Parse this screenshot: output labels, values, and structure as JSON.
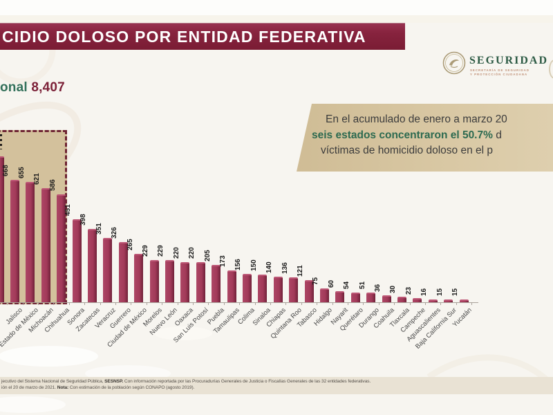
{
  "header": {
    "title_visible": "CIDIO DOLOSO POR ENTIDAD FEDERATIVA",
    "total_prefix_visible": "onal",
    "total_value": "8,407"
  },
  "logo": {
    "wordmark": "SEGURIDAD",
    "sub_line1": "SECRETARÍA DE SEGURIDAD",
    "sub_line2": "Y PROTECCIÓN CIUDADANA"
  },
  "callout": {
    "line1": "En el acumulado de enero a marzo 20",
    "line2_highlight": "seis estados concentraron el 50.7%",
    "line2_tail": " d",
    "line3": "víctimas de homicidio doloso en el p"
  },
  "chart_data": {
    "type": "bar",
    "title_visible": "CIDIO DOLOSO POR ENTIDAD FEDERATIVA",
    "categories": [
      "Jalisco",
      "Estado de México",
      "Michoacán",
      "Chihuahua",
      "Sonora",
      "Zacatecas",
      "Veracruz",
      "Guerrero",
      "Ciudad de México",
      "Morelos",
      "Nuevo León",
      "Oaxaca",
      "San Luis Potosí",
      "Puebla",
      "Tamaulipas",
      "Colima",
      "Sinaloa",
      "Chiapas",
      "Quintana Roo",
      "Tabasco",
      "Hidalgo",
      "Nayarit",
      "Querétaro",
      "Durango",
      "Coahuila",
      "Tlaxcala",
      "Campeche",
      "Aguascalientes",
      "Baja California Sur",
      "Yucatán"
    ],
    "values": [
      668,
      655,
      621,
      586,
      451,
      398,
      351,
      326,
      265,
      229,
      229,
      220,
      220,
      205,
      173,
      156,
      150,
      140,
      136,
      121,
      75,
      60,
      54,
      51,
      36,
      30,
      23,
      16,
      15,
      15
    ],
    "clipped_left_bar": {
      "visible": true,
      "approx_value": 795,
      "value_label_clipped": true
    },
    "highlight_box": {
      "style": "tan fill, dark-red dashed border",
      "visible_bars_inside": [
        "Jalisco",
        "Estado de México",
        "Michoacán",
        "Chihuahua"
      ]
    },
    "ylim": [
      0,
      850
    ],
    "grid": false,
    "legend": false,
    "bar_color": "#a23a59",
    "value_labels_rotation": -90,
    "category_labels_rotation": -45
  },
  "footer": {
    "line1_pre": "jecutivo del Sistema Nacional de Seguridad Pública, ",
    "line1_bold": "SESNSP.",
    "line1_post": " Con información reportada por las Procuradurías Generales de Justicia o Fiscalías Generales de las 32 entidades federativas.",
    "line2_pre": "ión el 20 de marzo de 2021. ",
    "line2_bold": "Nota:",
    "line2_post": " Con estimación de la población según CONAPO (agosto 2019)."
  },
  "colors": {
    "title_bar": "#7a1c34",
    "bar_fill": "#a23a59",
    "bar_shadow": "#6f2138",
    "highlight_green": "#2d6a50",
    "total_maroon": "#7c2138",
    "callout_bg": "#d6c5a0",
    "dashed_box_fill": "#d3c19c",
    "dashed_box_border": "#6e2432",
    "footer_bg": "#e9e2d4",
    "page_bg": "#f7f5f0"
  }
}
